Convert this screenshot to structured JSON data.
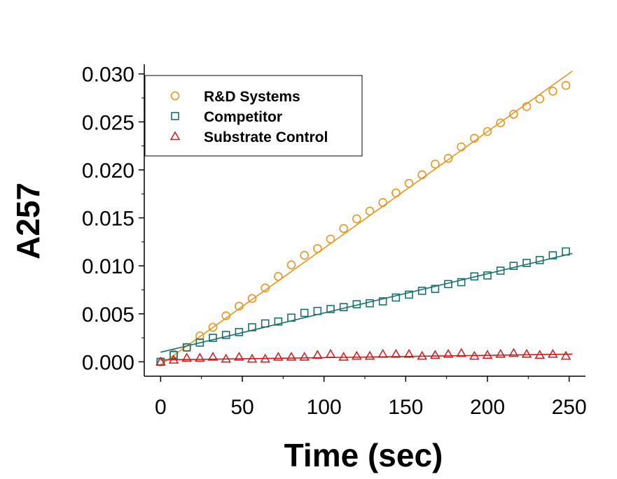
{
  "chart_data": {
    "type": "scatter",
    "title": "",
    "xlabel": "Time (sec)",
    "ylabel": "A257",
    "xlim": [
      -10,
      260
    ],
    "ylim": [
      -0.0015,
      0.031
    ],
    "x_ticks": [
      0,
      50,
      100,
      150,
      200,
      250
    ],
    "x_tick_labels": [
      "0",
      "50",
      "100",
      "150",
      "200",
      "250"
    ],
    "y_ticks": [
      0.0,
      0.005,
      0.01,
      0.015,
      0.02,
      0.025,
      0.03
    ],
    "y_tick_labels": [
      "0.000",
      "0.005",
      "0.010",
      "0.015",
      "0.020",
      "0.025",
      "0.030"
    ],
    "grid": false,
    "legend_position": "top-left",
    "series": [
      {
        "name": "R&D Systems",
        "marker": "circle",
        "color": "#E8961E",
        "x": [
          0,
          8,
          16,
          24,
          32,
          40,
          48,
          56,
          64,
          72,
          80,
          88,
          96,
          104,
          112,
          120,
          128,
          136,
          144,
          152,
          160,
          168,
          176,
          184,
          192,
          200,
          208,
          216,
          224,
          232,
          240,
          248
        ],
        "y": [
          0.0,
          0.0008,
          0.0015,
          0.0027,
          0.0036,
          0.0048,
          0.0058,
          0.0066,
          0.0077,
          0.0089,
          0.0101,
          0.0111,
          0.0118,
          0.0128,
          0.0139,
          0.0149,
          0.0157,
          0.0166,
          0.0176,
          0.0186,
          0.0195,
          0.0206,
          0.0212,
          0.0224,
          0.0233,
          0.024,
          0.0249,
          0.0258,
          0.0266,
          0.0274,
          0.0282,
          0.0288
        ],
        "fit": {
          "x": [
            0,
            252
          ],
          "y": [
            -0.0003,
            0.0303
          ]
        }
      },
      {
        "name": "Competitor",
        "marker": "square",
        "color": "#1A7070",
        "x": [
          0,
          8,
          16,
          24,
          32,
          40,
          48,
          56,
          64,
          72,
          80,
          88,
          96,
          104,
          112,
          120,
          128,
          136,
          144,
          152,
          160,
          168,
          176,
          184,
          192,
          200,
          208,
          216,
          224,
          232,
          240,
          248
        ],
        "y": [
          0.0,
          0.0007,
          0.0015,
          0.002,
          0.0025,
          0.0028,
          0.0031,
          0.0036,
          0.004,
          0.0042,
          0.0046,
          0.0051,
          0.0053,
          0.0055,
          0.0057,
          0.006,
          0.0061,
          0.0063,
          0.0067,
          0.007,
          0.0074,
          0.0076,
          0.0081,
          0.0083,
          0.0089,
          0.009,
          0.0095,
          0.01,
          0.0103,
          0.0106,
          0.0111,
          0.0115
        ],
        "fit": {
          "x": [
            0,
            252
          ],
          "y": [
            0.001,
            0.0113
          ]
        }
      },
      {
        "name": "Substrate Control",
        "marker": "triangle",
        "color": "#D01A1A",
        "x": [
          0,
          8,
          16,
          24,
          32,
          40,
          48,
          56,
          64,
          72,
          80,
          88,
          96,
          104,
          112,
          120,
          128,
          136,
          144,
          152,
          160,
          168,
          176,
          184,
          192,
          200,
          208,
          216,
          224,
          232,
          240,
          248
        ],
        "y": [
          0.0,
          0.0002,
          0.0004,
          0.0004,
          0.0005,
          0.0003,
          0.0005,
          0.0003,
          0.0003,
          0.0005,
          0.0005,
          0.0005,
          0.0007,
          0.0008,
          0.0005,
          0.0006,
          0.0006,
          0.0008,
          0.0008,
          0.0008,
          0.0006,
          0.0007,
          0.0008,
          0.0009,
          0.0006,
          0.0007,
          0.0008,
          0.0009,
          0.0008,
          0.0007,
          0.0008,
          0.0006
        ],
        "fit": {
          "x": [
            0,
            252
          ],
          "y": [
            0.0002,
            0.0008
          ]
        }
      }
    ]
  }
}
